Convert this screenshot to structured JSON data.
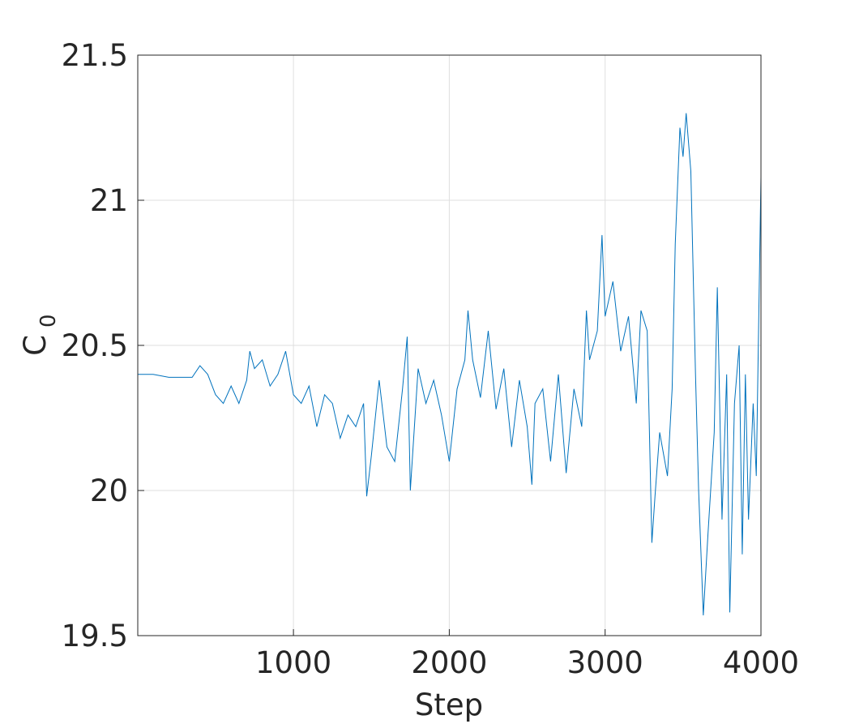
{
  "chart_data": {
    "type": "line",
    "xlabel": "Step",
    "ylabel": {
      "text": "C",
      "subscript": "0"
    },
    "x": [
      1,
      100,
      200,
      300,
      350,
      400,
      450,
      500,
      550,
      600,
      650,
      700,
      720,
      750,
      800,
      850,
      900,
      950,
      1000,
      1050,
      1100,
      1150,
      1200,
      1250,
      1300,
      1350,
      1400,
      1450,
      1470,
      1500,
      1550,
      1600,
      1650,
      1700,
      1730,
      1750,
      1800,
      1850,
      1900,
      1950,
      2000,
      2050,
      2100,
      2120,
      2150,
      2200,
      2250,
      2300,
      2350,
      2400,
      2450,
      2500,
      2530,
      2550,
      2600,
      2650,
      2700,
      2750,
      2800,
      2850,
      2880,
      2900,
      2950,
      2980,
      3000,
      3050,
      3100,
      3150,
      3200,
      3230,
      3270,
      3300,
      3320,
      3350,
      3400,
      3430,
      3450,
      3480,
      3500,
      3520,
      3550,
      3580,
      3600,
      3630,
      3660,
      3700,
      3720,
      3750,
      3780,
      3800,
      3830,
      3860,
      3880,
      3900,
      3920,
      3950,
      3970,
      4000
    ],
    "series": [
      {
        "name": "C0",
        "color": "#0072bd",
        "values": [
          20.4,
          20.4,
          20.39,
          20.39,
          20.39,
          20.43,
          20.4,
          20.33,
          20.3,
          20.36,
          20.3,
          20.38,
          20.48,
          20.42,
          20.45,
          20.36,
          20.4,
          20.48,
          20.33,
          20.3,
          20.36,
          20.22,
          20.33,
          20.3,
          20.18,
          20.26,
          20.22,
          20.3,
          19.98,
          20.12,
          20.38,
          20.15,
          20.1,
          20.35,
          20.53,
          20.0,
          20.42,
          20.3,
          20.38,
          20.26,
          20.1,
          20.35,
          20.45,
          20.62,
          20.45,
          20.32,
          20.55,
          20.28,
          20.42,
          20.15,
          20.38,
          20.22,
          20.02,
          20.3,
          20.35,
          20.1,
          20.4,
          20.06,
          20.35,
          20.22,
          20.62,
          20.45,
          20.55,
          20.88,
          20.6,
          20.72,
          20.48,
          20.6,
          20.3,
          20.62,
          20.55,
          19.82,
          19.98,
          20.2,
          20.05,
          20.35,
          20.85,
          21.25,
          21.15,
          21.3,
          21.1,
          20.4,
          20.0,
          19.57,
          19.85,
          20.2,
          20.7,
          19.9,
          20.4,
          19.58,
          20.3,
          20.5,
          19.78,
          20.4,
          19.9,
          20.3,
          20.05,
          21.08
        ]
      }
    ],
    "xlim": [
      1,
      4000
    ],
    "ylim": [
      19.5,
      21.5
    ],
    "xticks": [
      1000,
      2000,
      3000,
      4000
    ],
    "yticks": [
      19.5,
      20,
      20.5,
      21,
      21.5
    ],
    "grid": true
  }
}
